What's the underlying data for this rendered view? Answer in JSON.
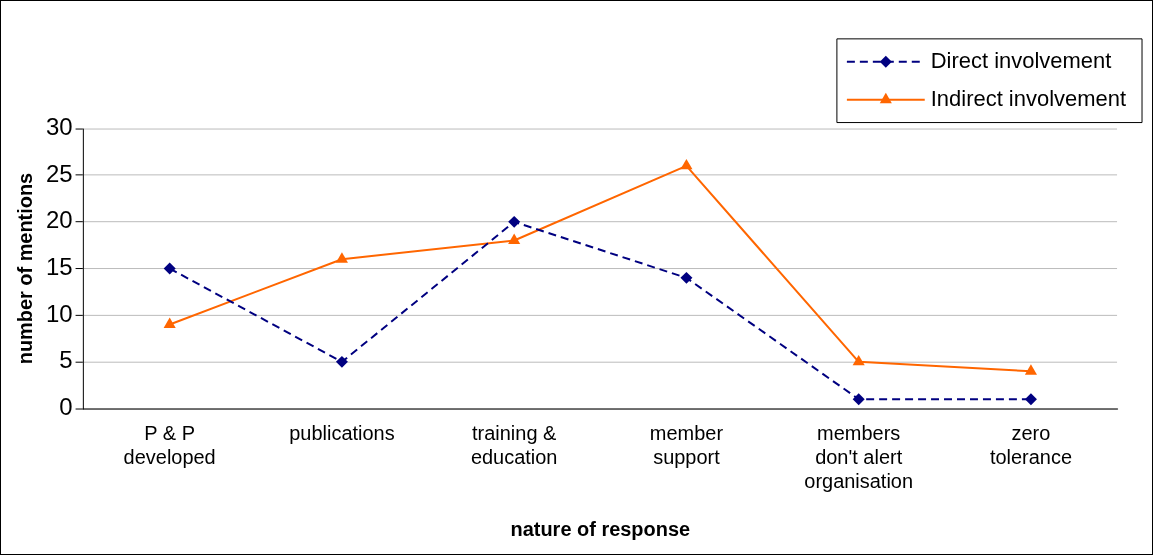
{
  "chart_data": {
    "type": "line",
    "xlabel": "nature of response",
    "ylabel": "number of mentions",
    "categories": [
      "P & P developed",
      "publications",
      "training & education",
      "member support",
      "members don't alert organisation",
      "zero tolerance"
    ],
    "series": [
      {
        "name": "Direct involvement",
        "color": "#000080",
        "marker": "diamond",
        "line_style": "dashed",
        "values": [
          15,
          5,
          20,
          14,
          1,
          1
        ]
      },
      {
        "name": "Indirect involvement",
        "color": "#ff6600",
        "marker": "triangle",
        "line_style": "solid",
        "values": [
          9,
          16,
          18,
          26,
          5,
          4
        ]
      }
    ],
    "ylim": [
      0,
      30
    ],
    "yticks": [
      0,
      5,
      10,
      15,
      20,
      25,
      30
    ],
    "grid": "y",
    "legend": "top right"
  }
}
